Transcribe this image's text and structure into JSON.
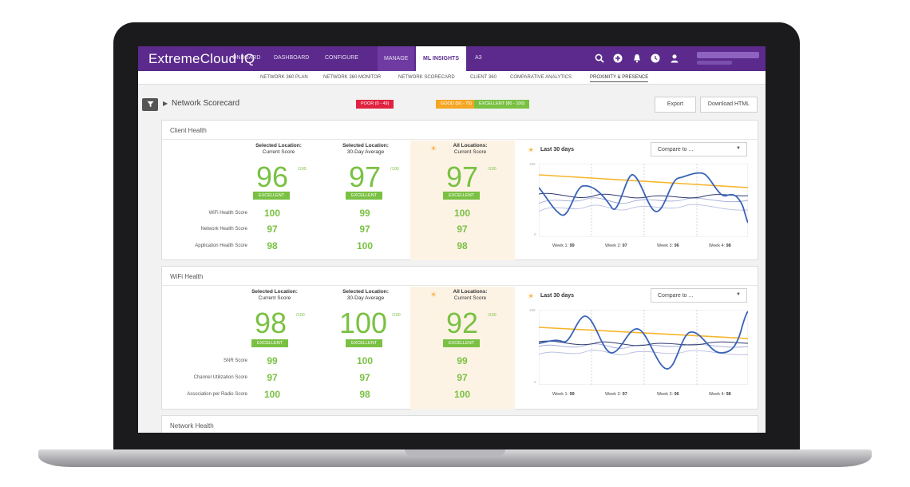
{
  "app": {
    "brand": "ExtremeCloud IQ"
  },
  "nav": {
    "tabs": [
      "ONBOARD",
      "DASHBOARD",
      "CONFIGURE",
      "MANAGE",
      "ML INSIGHTS",
      "A3"
    ]
  },
  "subnav": {
    "tabs": [
      "NETWORK 360 PLAN",
      "NETWORK 360 MONITOR",
      "NETWORK SCORECARD",
      "CLIENT 360",
      "COMPARATIVE ANALYTICS",
      "PROXIMITY & PRESENCE"
    ]
  },
  "page": {
    "title": "Network Scorecard",
    "legend": {
      "poor": "POOR (0 - 49)",
      "good": "GOOD (50 - 79)",
      "excellent": "EXCELLENT (80 - 100)"
    },
    "export": "Export",
    "download": "Download HTML"
  },
  "common": {
    "sel_current_1": "Selected Location:",
    "sel_current_2": "Current Score",
    "sel_avg_1": "Selected Location:",
    "sel_avg_2": "30-Day Average",
    "all_1": "All Locations:",
    "all_2": "Current Score",
    "of100": "/100",
    "excellent": "EXCELLENT",
    "last30": "Last 30 days",
    "compare": "Compare to ...",
    "axis_top": "100",
    "axis_bottom": "0"
  },
  "client_health": {
    "title": "Client Health",
    "scores": [
      "96",
      "97",
      "97"
    ],
    "rows": [
      {
        "label": "WiFi Health Score",
        "values": [
          "100",
          "99",
          "100"
        ]
      },
      {
        "label": "Network Health Score",
        "values": [
          "97",
          "97",
          "97"
        ]
      },
      {
        "label": "Application Health Score",
        "values": [
          "98",
          "100",
          "98"
        ]
      }
    ],
    "weeks": [
      {
        "label": "Week 1:",
        "value": "99"
      },
      {
        "label": "Week 2:",
        "value": "97"
      },
      {
        "label": "Week 3:",
        "value": "96"
      },
      {
        "label": "Week 4:",
        "value": "98"
      }
    ]
  },
  "wifi_health": {
    "title": "WiFi Health",
    "scores": [
      "98",
      "100",
      "92"
    ],
    "rows": [
      {
        "label": "SNR Score",
        "values": [
          "99",
          "100",
          "99"
        ]
      },
      {
        "label": "Channel Utilization Score",
        "values": [
          "97",
          "97",
          "97"
        ]
      },
      {
        "label": "Association per Radio Score",
        "values": [
          "100",
          "98",
          "100"
        ]
      }
    ],
    "weeks": [
      {
        "label": "Week 1:",
        "value": "99"
      },
      {
        "label": "Week 2:",
        "value": "97"
      },
      {
        "label": "Week 3:",
        "value": "96"
      },
      {
        "label": "Week 4:",
        "value": "98"
      }
    ]
  },
  "network_health": {
    "title": "Network Health"
  }
}
